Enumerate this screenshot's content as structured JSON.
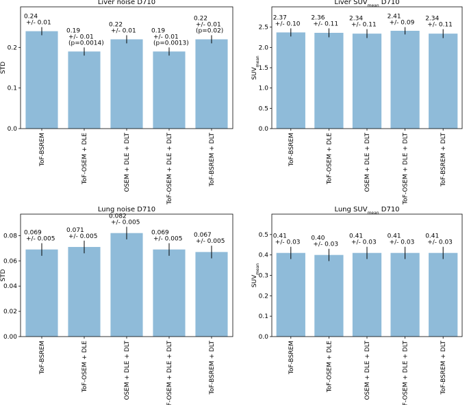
{
  "chart_data": [
    {
      "type": "bar",
      "title": "Liver noise D710",
      "ylabel": "STD",
      "categories": [
        "ToF-BSREM",
        "ToF-OSEM + DLE",
        "OSEM + DLE + DLT",
        "ToF-OSEM + DLE + DLT",
        "ToF-BSREM + DLT"
      ],
      "values": [
        0.24,
        0.19,
        0.22,
        0.19,
        0.22
      ],
      "errors": [
        0.01,
        0.01,
        0.01,
        0.01,
        0.01
      ],
      "value_labels": [
        "0.24",
        "0.19",
        "0.22",
        "0.19",
        "0.22"
      ],
      "error_labels": [
        "+/- 0.01",
        "+/- 0.01",
        "+/- 0.01",
        "+/- 0.01",
        "+/- 0.01"
      ],
      "annotations": [
        null,
        "(p=0.0014)",
        null,
        "(p=0.0013)",
        "(p=0.02)"
      ],
      "ylim": [
        0,
        0.3
      ],
      "yticks": [
        {
          "value": 0,
          "label": "0.0"
        },
        {
          "value": 0.1,
          "label": "0.1"
        },
        {
          "value": 0.2,
          "label": "0.2"
        }
      ],
      "color": "#8fbbd9"
    },
    {
      "type": "bar",
      "title": [
        "Liver SUV",
        "mean",
        " D710"
      ],
      "ylabel": [
        "SUV",
        "mean"
      ],
      "categories": [
        "ToF-BSREM",
        "ToF-OSEM + DLE",
        "OSEM + DLE + DLT",
        "ToF-OSEM + DLE + DLT",
        "ToF-BSREM + DLT"
      ],
      "values": [
        2.37,
        2.36,
        2.34,
        2.41,
        2.34
      ],
      "errors": [
        0.1,
        0.11,
        0.11,
        0.09,
        0.11
      ],
      "value_labels": [
        "2.37",
        "2.36",
        "2.34",
        "2.41",
        "2.34"
      ],
      "error_labels": [
        "+/- 0.10",
        "+/- 0.11",
        "+/- 0.11",
        "+/- 0.09",
        "+/- 0.11"
      ],
      "ylim": [
        0,
        3
      ],
      "yticks": [
        {
          "value": 0,
          "label": "0.0"
        },
        {
          "value": 0.5,
          "label": "0.5"
        },
        {
          "value": 1,
          "label": "1.0"
        },
        {
          "value": 1.5,
          "label": "1.5"
        },
        {
          "value": 2,
          "label": "2.0"
        },
        {
          "value": 2.5,
          "label": "2.5"
        }
      ],
      "color": "#8fbbd9"
    },
    {
      "type": "bar",
      "title": "Lung noise D710",
      "ylabel": "STD",
      "categories": [
        "ToF-BSREM",
        "ToF-OSEM + DLE",
        "OSEM + DLE + DLT",
        "ToF-OSEM + DLE + DLT",
        "ToF-BSREM + DLT"
      ],
      "values": [
        0.069,
        0.071,
        0.082,
        0.069,
        0.067
      ],
      "errors": [
        0.005,
        0.005,
        0.005,
        0.005,
        0.005
      ],
      "value_labels": [
        "0.069",
        "0.071",
        "0.082",
        "0.069",
        "0.067"
      ],
      "error_labels": [
        "+/- 0.005",
        "+/- 0.005",
        "+/- 0.005",
        "+/- 0.005",
        "+/- 0.005"
      ],
      "ylim": [
        0,
        0.097
      ],
      "yticks": [
        {
          "value": 0,
          "label": "0.00"
        },
        {
          "value": 0.02,
          "label": "0.02"
        },
        {
          "value": 0.04,
          "label": "0.04"
        },
        {
          "value": 0.06,
          "label": "0.06"
        },
        {
          "value": 0.08,
          "label": "0.08"
        }
      ],
      "color": "#8fbbd9"
    },
    {
      "type": "bar",
      "title": [
        "Lung SUV",
        "mean",
        " D710"
      ],
      "ylabel": [
        "SUV",
        "mean"
      ],
      "categories": [
        "ToF-BSREM",
        "ToF-OSEM + DLE",
        "OSEM + DLE + DLT",
        "ToF-OSEM + DLE + DLT",
        "ToF-BSREM + DLT"
      ],
      "values": [
        0.41,
        0.4,
        0.41,
        0.41,
        0.41
      ],
      "errors": [
        0.03,
        0.03,
        0.03,
        0.03,
        0.03
      ],
      "value_labels": [
        "0.41",
        "0.40",
        "0.41",
        "0.41",
        "0.41"
      ],
      "error_labels": [
        "+/- 0.03",
        "+/- 0.03",
        "+/- 0.03",
        "+/- 0.03",
        "+/- 0.03"
      ],
      "ylim": [
        0,
        0.6
      ],
      "yticks": [
        {
          "value": 0,
          "label": "0.0"
        },
        {
          "value": 0.1,
          "label": "0.1"
        },
        {
          "value": 0.2,
          "label": "0.2"
        },
        {
          "value": 0.3,
          "label": "0.3"
        },
        {
          "value": 0.4,
          "label": "0.4"
        },
        {
          "value": 0.5,
          "label": "0.5"
        }
      ],
      "color": "#8fbbd9"
    }
  ]
}
